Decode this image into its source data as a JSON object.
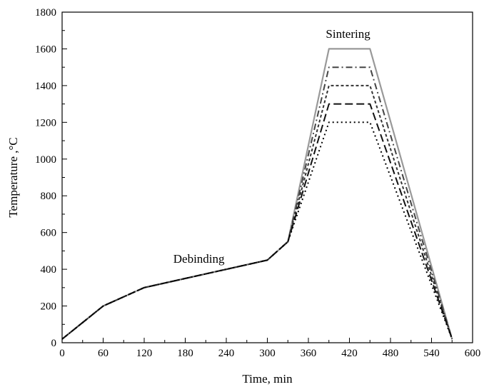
{
  "chart_data": {
    "type": "line",
    "title": "",
    "xlabel": "Time, min",
    "ylabel": "Temperature ,°C",
    "xlim": [
      0,
      600
    ],
    "ylim": [
      0,
      1800
    ],
    "xticks": [
      0,
      60,
      120,
      180,
      240,
      300,
      360,
      420,
      480,
      540,
      600
    ],
    "yticks": [
      0,
      200,
      400,
      600,
      800,
      1000,
      1200,
      1400,
      1600,
      1800
    ],
    "grid": false,
    "annotations": [
      {
        "text": "Sintering",
        "x": 418,
        "y": 1660
      },
      {
        "text": "Debinding",
        "x": 200,
        "y": 435
      }
    ],
    "series": [
      {
        "values": [
          [
            0,
            20
          ],
          [
            60,
            200
          ],
          [
            120,
            300
          ],
          [
            300,
            450
          ],
          [
            330,
            550
          ],
          [
            390,
            1600
          ],
          [
            450,
            1600
          ],
          [
            570,
            20
          ]
        ],
        "color": "#999999",
        "dash": "solid"
      },
      {
        "values": [
          [
            0,
            20
          ],
          [
            60,
            200
          ],
          [
            120,
            300
          ],
          [
            300,
            450
          ],
          [
            330,
            550
          ],
          [
            390,
            1500
          ],
          [
            450,
            1500
          ],
          [
            570,
            20
          ]
        ],
        "color": "#444444",
        "dash": "dashdot"
      },
      {
        "values": [
          [
            0,
            20
          ],
          [
            60,
            200
          ],
          [
            120,
            300
          ],
          [
            300,
            450
          ],
          [
            330,
            550
          ],
          [
            390,
            1400
          ],
          [
            450,
            1400
          ],
          [
            570,
            20
          ]
        ],
        "color": "#333333",
        "dash": "short"
      },
      {
        "values": [
          [
            0,
            20
          ],
          [
            60,
            200
          ],
          [
            120,
            300
          ],
          [
            300,
            450
          ],
          [
            330,
            550
          ],
          [
            390,
            1300
          ],
          [
            450,
            1300
          ],
          [
            570,
            20
          ]
        ],
        "color": "#111111",
        "dash": "long"
      },
      {
        "values": [
          [
            0,
            20
          ],
          [
            60,
            200
          ],
          [
            120,
            300
          ],
          [
            300,
            450
          ],
          [
            330,
            550
          ],
          [
            390,
            1200
          ],
          [
            450,
            1200
          ],
          [
            570,
            20
          ]
        ],
        "color": "#000000",
        "dash": "dot"
      }
    ]
  }
}
